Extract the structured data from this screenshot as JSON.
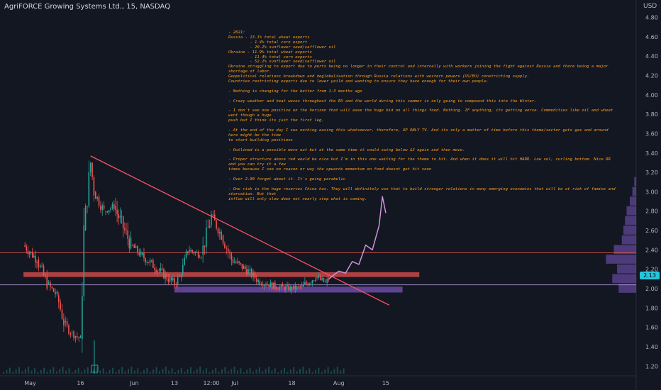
{
  "header": {
    "title": "AgriFORCE Growing Systems Ltd., 15, NASDAQ",
    "currency": "USD"
  },
  "notes": [
    "- 2021:",
    "Russia - 13.1% total wheat exports",
    "         - 1.4% total corn export",
    "         - 20.2% sunflower seed/safflower oil",
    "Ukraine - 11.9% total wheat exports",
    "         - 11.4% total corn exports",
    "         - 52.2% sunflower seed/safflower oil",
    "Ukraine struggling to export due to ports being no longer in their control and internally with workers joining the fight against Russia and there being a major shortage of labor.",
    "Geopolitical relations breakdown and deglobalisation through Russia relations with western powers (US/EU) constricting supply.",
    "Countries restricting exports due to lower yeild and wanting to ensure they have enough for their own people.",
    "",
    "- Nothing is changing for the better from 1-3 months ago",
    "",
    "- Crazy weather and heat waves throughout the EU and the world during this summer is only going to compound this into the Winter.",
    "",
    "- I don`t see one positive on the horizon that will ease the huge bid on all things food. Nothing. IF anything, its getting worse. Commodities like oil and wheat went though a huge",
    "push but I think its just the first leg.",
    "",
    "- At the end of the day I see nothing easing this whatsoever, therefore, UP ONLY TV. And its only a matter of time before this theme/sector gets gas and around here might be the time",
    "to start building positions",
    "",
    "- Outlined is a possible move out but at the same time it could swing below $2 again and then move.",
    "",
    "- Proper structure above red would be nice but I`m in this one waiting for the theme to hit. And when it does it will hit HARD. Low vol, curling bottom. Nice RR and you can try it a few",
    "times because I see no reason or way the upwards momentum on food doesnt get hit soon",
    "",
    "- Over 2.90 forget about it. It`s going parabolic",
    "",
    "- One risk is the huge reserves China has. They will definitely use that to build stronger relations in many emerging economies that will be at risk of famine and starvation. But that",
    "inflow will only slow down not nearly stop what is coming."
  ],
  "chart_data": {
    "type": "candlestick",
    "title": "AgriFORCE Growing Systems Ltd., 15, NASDAQ",
    "interval": "15",
    "exchange": "NASDAQ",
    "currency": "USD",
    "last_price": "2.13",
    "y_ticks": [
      "4.80",
      "4.60",
      "4.40",
      "4.20",
      "4.00",
      "3.80",
      "3.60",
      "3.40",
      "3.20",
      "3.00",
      "2.80",
      "2.60",
      "2.40",
      "2.20",
      "2.00",
      "1.80",
      "1.60",
      "1.40",
      "1.20"
    ],
    "ylim": [
      1.1,
      4.95
    ],
    "x_ticks": [
      "May",
      "16",
      "Jun",
      "13",
      "12:00",
      "Jul",
      "18",
      "Aug",
      "15"
    ],
    "price_path": [
      {
        "date": "2022-04-29",
        "price": 2.45
      },
      {
        "date": "2022-05-03",
        "price": 2.3
      },
      {
        "date": "2022-05-06",
        "price": 2.05
      },
      {
        "date": "2022-05-09",
        "price": 1.93
      },
      {
        "date": "2022-05-11",
        "price": 1.65
      },
      {
        "date": "2022-05-13",
        "price": 1.55
      },
      {
        "date": "2022-05-16",
        "price": 1.48
      },
      {
        "date": "2022-05-17",
        "price": 2.6
      },
      {
        "date": "2022-05-19",
        "price": 3.3
      },
      {
        "date": "2022-05-20",
        "price": 3.0
      },
      {
        "date": "2022-05-23",
        "price": 2.8
      },
      {
        "date": "2022-05-26",
        "price": 2.85
      },
      {
        "date": "2022-05-31",
        "price": 2.45
      },
      {
        "date": "2022-06-03",
        "price": 2.35
      },
      {
        "date": "2022-06-08",
        "price": 2.2
      },
      {
        "date": "2022-06-13",
        "price": 2.05
      },
      {
        "date": "2022-06-15",
        "price": 2.15
      },
      {
        "date": "2022-06-17",
        "price": 2.4
      },
      {
        "date": "2022-06-21",
        "price": 2.35
      },
      {
        "date": "2022-06-24",
        "price": 2.75
      },
      {
        "date": "2022-06-27",
        "price": 2.55
      },
      {
        "date": "2022-06-30",
        "price": 2.3
      },
      {
        "date": "2022-07-05",
        "price": 2.18
      },
      {
        "date": "2022-07-08",
        "price": 2.08
      },
      {
        "date": "2022-07-13",
        "price": 2.02
      },
      {
        "date": "2022-07-18",
        "price": 2.0
      },
      {
        "date": "2022-07-21",
        "price": 2.02
      },
      {
        "date": "2022-07-25",
        "price": 2.12
      },
      {
        "date": "2022-07-28",
        "price": 2.06
      },
      {
        "date": "2022-07-29",
        "price": 2.1
      }
    ],
    "projection": [
      {
        "date": "2022-07-29",
        "price": 2.1
      },
      {
        "date": "2022-08-01",
        "price": 2.18
      },
      {
        "date": "2022-08-03",
        "price": 2.16
      },
      {
        "date": "2022-08-05",
        "price": 2.28
      },
      {
        "date": "2022-08-07",
        "price": 2.25
      },
      {
        "date": "2022-08-09",
        "price": 2.45
      },
      {
        "date": "2022-08-11",
        "price": 2.4
      },
      {
        "date": "2022-08-13",
        "price": 2.65
      },
      {
        "date": "2022-08-14",
        "price": 2.95
      },
      {
        "date": "2022-08-15",
        "price": 2.78
      }
    ],
    "trendline": [
      {
        "date": "2022-05-19",
        "price": 3.37
      },
      {
        "date": "2022-08-16",
        "price": 1.83
      }
    ],
    "zones": [
      {
        "name": "resistance",
        "color": "#ef5350",
        "from": "2022-04-29",
        "to": "2022-08-25",
        "low": 2.12,
        "high": 2.17
      },
      {
        "name": "support",
        "color": "#7e57c2",
        "from": "2022-06-13",
        "to": "2022-08-20",
        "low": 1.96,
        "high": 2.02
      }
    ],
    "hlines": [
      {
        "color": "#b39ddb",
        "price": 2.04
      },
      {
        "color": "#ef5350",
        "price": 2.37
      }
    ],
    "volume_profile": [
      {
        "price": 2.0,
        "volume": 55
      },
      {
        "price": 2.1,
        "volume": 75
      },
      {
        "price": 2.2,
        "volume": 60
      },
      {
        "price": 2.3,
        "volume": 95
      },
      {
        "price": 2.4,
        "volume": 70
      },
      {
        "price": 2.5,
        "volume": 45
      },
      {
        "price": 2.6,
        "volume": 40
      },
      {
        "price": 2.7,
        "volume": 35
      },
      {
        "price": 2.8,
        "volume": 30
      },
      {
        "price": 2.9,
        "volume": 20
      },
      {
        "price": 3.0,
        "volume": 12
      },
      {
        "price": 3.1,
        "volume": 6
      }
    ],
    "colors": {
      "background": "#131722",
      "up": "#26a69a",
      "down": "#ef5350",
      "projection": "#ce93d8",
      "trendline": "#ff5263",
      "notes": "#ff9f1a",
      "last_price_tag": "#26c6da"
    }
  }
}
